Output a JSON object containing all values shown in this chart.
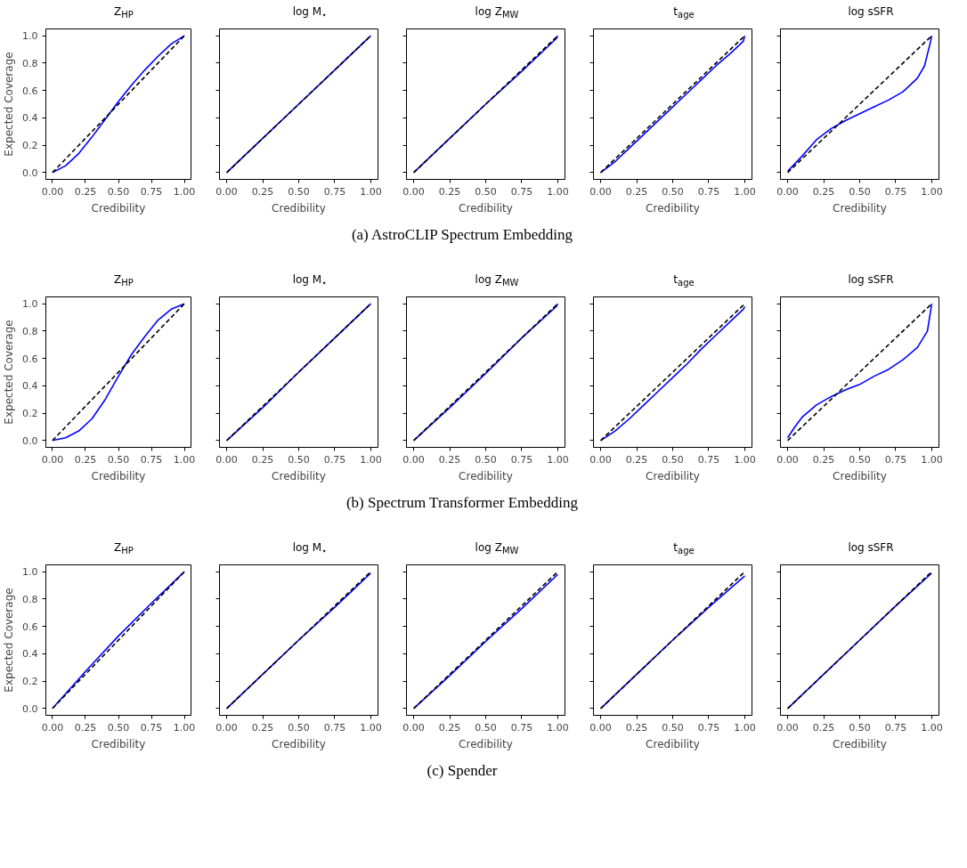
{
  "chart_data": [
    {
      "type": "line",
      "title": "Z$_{HP}$",
      "xlabel": "Credibility",
      "ylabel": "Expected Coverage",
      "xlim": [
        -0.05,
        1.05
      ],
      "ylim": [
        -0.05,
        1.05
      ],
      "xticks": [
        {
          "value": 0,
          "label": "0.00"
        },
        {
          "value": 0.25,
          "label": "0.25"
        },
        {
          "value": 0.5,
          "label": "0.50"
        },
        {
          "value": 0.75,
          "label": "0.75"
        },
        {
          "value": 1,
          "label": "1.00"
        }
      ],
      "yticks": [
        {
          "value": 0,
          "label": "0.0"
        },
        {
          "value": 0.2,
          "label": "0.2"
        },
        {
          "value": 0.4,
          "label": "0.4"
        },
        {
          "value": 0.6,
          "label": "0.6"
        },
        {
          "value": 0.8,
          "label": "0.8"
        },
        {
          "value": 1,
          "label": "1.0"
        }
      ],
      "grid": false,
      "series": [
        {
          "color": "#0000ff",
          "line_style": "solid",
          "x": [
            0,
            0.1,
            0.2,
            0.3,
            0.4,
            0.5,
            0.6,
            0.7,
            0.8,
            0.9,
            1
          ],
          "values": [
            0,
            0.05,
            0.14,
            0.26,
            0.39,
            0.52,
            0.64,
            0.75,
            0.85,
            0.94,
            1
          ]
        },
        {
          "color": "#000000",
          "line_style": "dashed",
          "x": [
            0,
            1
          ],
          "values": [
            0,
            1
          ]
        }
      ]
    },
    {
      "type": "line",
      "title": "log M$_{⋆}$",
      "xlabel": "Credibility",
      "xlim": [
        -0.05,
        1.05
      ],
      "ylim": [
        -0.05,
        1.05
      ],
      "xticks": [
        {
          "value": 0,
          "label": "0.00"
        },
        {
          "value": 0.25,
          "label": "0.25"
        },
        {
          "value": 0.5,
          "label": "0.50"
        },
        {
          "value": 0.75,
          "label": "0.75"
        },
        {
          "value": 1,
          "label": "1.00"
        }
      ],
      "yticks": [
        0,
        0.2,
        0.4,
        0.6,
        0.8,
        1
      ],
      "tick_labels": "x",
      "grid": false,
      "series": [
        {
          "color": "#0000ff",
          "line_style": "solid",
          "x": [
            0,
            0.25,
            0.5,
            0.75,
            1
          ],
          "values": [
            0,
            0.25,
            0.5,
            0.75,
            1
          ]
        },
        {
          "color": "#000000",
          "line_style": "dashed",
          "x": [
            0,
            1
          ],
          "values": [
            0,
            1
          ]
        }
      ]
    },
    {
      "type": "line",
      "title": "log Z$_{MW}$",
      "xlabel": "Credibility",
      "xlim": [
        -0.05,
        1.05
      ],
      "ylim": [
        -0.05,
        1.05
      ],
      "xticks": [
        {
          "value": 0,
          "label": "0.00"
        },
        {
          "value": 0.25,
          "label": "0.25"
        },
        {
          "value": 0.5,
          "label": "0.50"
        },
        {
          "value": 0.75,
          "label": "0.75"
        },
        {
          "value": 1,
          "label": "1.00"
        }
      ],
      "yticks": [
        0,
        0.2,
        0.4,
        0.6,
        0.8,
        1
      ],
      "tick_labels": "x",
      "grid": false,
      "annotations": [
        "(a) AstroCLIP Spectrum Embedding"
      ],
      "series": [
        {
          "color": "#0000ff",
          "line_style": "solid",
          "x": [
            0,
            0.25,
            0.5,
            0.75,
            0.99,
            1
          ],
          "values": [
            0,
            0.25,
            0.5,
            0.74,
            0.98,
            1
          ]
        },
        {
          "color": "#000000",
          "line_style": "dashed",
          "x": [
            0,
            1
          ],
          "values": [
            0,
            1
          ]
        }
      ]
    },
    {
      "type": "line",
      "title": "t$_{age}$",
      "xlabel": "Credibility",
      "xlim": [
        -0.05,
        1.05
      ],
      "ylim": [
        -0.05,
        1.05
      ],
      "xticks": [
        {
          "value": 0,
          "label": "0.00"
        },
        {
          "value": 0.25,
          "label": "0.25"
        },
        {
          "value": 0.5,
          "label": "0.50"
        },
        {
          "value": 0.75,
          "label": "0.75"
        },
        {
          "value": 1,
          "label": "1.00"
        }
      ],
      "yticks": [
        0,
        0.2,
        0.4,
        0.6,
        0.8,
        1
      ],
      "tick_labels": "x",
      "grid": false,
      "series": [
        {
          "color": "#0000ff",
          "line_style": "solid",
          "x": [
            0,
            0.1,
            0.2,
            0.3,
            0.4,
            0.5,
            0.6,
            0.7,
            0.8,
            0.9,
            0.99,
            1
          ],
          "values": [
            0,
            0.08,
            0.18,
            0.28,
            0.38,
            0.48,
            0.58,
            0.68,
            0.78,
            0.87,
            0.96,
            1
          ]
        },
        {
          "color": "#000000",
          "line_style": "dashed",
          "x": [
            0,
            1
          ],
          "values": [
            0,
            1
          ]
        }
      ]
    },
    {
      "type": "line",
      "title": "log sSFR",
      "xlabel": "Credibility",
      "xlim": [
        -0.05,
        1.05
      ],
      "ylim": [
        -0.05,
        1.05
      ],
      "xticks": [
        {
          "value": 0,
          "label": "0.00"
        },
        {
          "value": 0.25,
          "label": "0.25"
        },
        {
          "value": 0.5,
          "label": "0.50"
        },
        {
          "value": 0.75,
          "label": "0.75"
        },
        {
          "value": 1,
          "label": "1.00"
        }
      ],
      "yticks": [
        0,
        0.2,
        0.4,
        0.6,
        0.8,
        1
      ],
      "tick_labels": "x",
      "grid": false,
      "series": [
        {
          "color": "#0000ff",
          "line_style": "solid",
          "x": [
            0,
            0.1,
            0.2,
            0.3,
            0.4,
            0.5,
            0.6,
            0.7,
            0.8,
            0.9,
            0.95,
            0.99,
            1
          ],
          "values": [
            0.01,
            0.12,
            0.24,
            0.32,
            0.38,
            0.43,
            0.48,
            0.53,
            0.59,
            0.69,
            0.78,
            0.95,
            1
          ]
        },
        {
          "color": "#000000",
          "line_style": "dashed",
          "x": [
            0,
            1
          ],
          "values": [
            0,
            1
          ]
        }
      ]
    },
    {
      "type": "line",
      "title": "Z$_{HP}$",
      "xlabel": "Credibility",
      "ylabel": "Expected Coverage",
      "xlim": [
        -0.05,
        1.05
      ],
      "ylim": [
        -0.05,
        1.05
      ],
      "xticks": [
        {
          "value": 0,
          "label": "0.00"
        },
        {
          "value": 0.25,
          "label": "0.25"
        },
        {
          "value": 0.5,
          "label": "0.50"
        },
        {
          "value": 0.75,
          "label": "0.75"
        },
        {
          "value": 1,
          "label": "1.00"
        }
      ],
      "yticks": [
        {
          "value": 0,
          "label": "0.0"
        },
        {
          "value": 0.2,
          "label": "0.2"
        },
        {
          "value": 0.4,
          "label": "0.4"
        },
        {
          "value": 0.6,
          "label": "0.6"
        },
        {
          "value": 0.8,
          "label": "0.8"
        },
        {
          "value": 1,
          "label": "1.0"
        }
      ],
      "grid": false,
      "series": [
        {
          "color": "#0000ff",
          "line_style": "solid",
          "x": [
            0,
            0.1,
            0.2,
            0.3,
            0.4,
            0.5,
            0.6,
            0.7,
            0.8,
            0.9,
            1
          ],
          "values": [
            0,
            0.02,
            0.07,
            0.16,
            0.3,
            0.47,
            0.63,
            0.76,
            0.88,
            0.96,
            1
          ]
        },
        {
          "color": "#000000",
          "line_style": "dashed",
          "x": [
            0,
            1
          ],
          "values": [
            0,
            1
          ]
        }
      ]
    },
    {
      "type": "line",
      "title": "log M$_{⋆}$",
      "xlabel": "Credibility",
      "xlim": [
        -0.05,
        1.05
      ],
      "ylim": [
        -0.05,
        1.05
      ],
      "xticks": [
        {
          "value": 0,
          "label": "0.00"
        },
        {
          "value": 0.25,
          "label": "0.25"
        },
        {
          "value": 0.5,
          "label": "0.50"
        },
        {
          "value": 0.75,
          "label": "0.75"
        },
        {
          "value": 1,
          "label": "1.00"
        }
      ],
      "yticks": [
        0,
        0.2,
        0.4,
        0.6,
        0.8,
        1
      ],
      "tick_labels": "x",
      "grid": false,
      "series": [
        {
          "color": "#0000ff",
          "line_style": "solid",
          "x": [
            0,
            0.25,
            0.5,
            0.75,
            1
          ],
          "values": [
            0,
            0.24,
            0.5,
            0.75,
            1
          ]
        },
        {
          "color": "#000000",
          "line_style": "dashed",
          "x": [
            0,
            1
          ],
          "values": [
            0,
            1
          ]
        }
      ]
    },
    {
      "type": "line",
      "title": "log Z$_{MW}$",
      "xlabel": "Credibility",
      "xlim": [
        -0.05,
        1.05
      ],
      "ylim": [
        -0.05,
        1.05
      ],
      "xticks": [
        {
          "value": 0,
          "label": "0.00"
        },
        {
          "value": 0.25,
          "label": "0.25"
        },
        {
          "value": 0.5,
          "label": "0.50"
        },
        {
          "value": 0.75,
          "label": "0.75"
        },
        {
          "value": 1,
          "label": "1.00"
        }
      ],
      "yticks": [
        0,
        0.2,
        0.4,
        0.6,
        0.8,
        1
      ],
      "tick_labels": "x",
      "grid": false,
      "annotations": [
        "(b) Spectrum Transformer Embedding"
      ],
      "series": [
        {
          "color": "#0000ff",
          "line_style": "solid",
          "x": [
            0,
            0.25,
            0.5,
            0.75,
            0.99,
            1
          ],
          "values": [
            0,
            0.24,
            0.49,
            0.75,
            0.98,
            1
          ]
        },
        {
          "color": "#000000",
          "line_style": "dashed",
          "x": [
            0,
            1
          ],
          "values": [
            0,
            1
          ]
        }
      ]
    },
    {
      "type": "line",
      "title": "t$_{age}$",
      "xlabel": "Credibility",
      "xlim": [
        -0.05,
        1.05
      ],
      "ylim": [
        -0.05,
        1.05
      ],
      "xticks": [
        {
          "value": 0,
          "label": "0.00"
        },
        {
          "value": 0.25,
          "label": "0.25"
        },
        {
          "value": 0.5,
          "label": "0.50"
        },
        {
          "value": 0.75,
          "label": "0.75"
        },
        {
          "value": 1,
          "label": "1.00"
        }
      ],
      "yticks": [
        0,
        0.2,
        0.4,
        0.6,
        0.8,
        1
      ],
      "tick_labels": "x",
      "grid": false,
      "series": [
        {
          "color": "#0000ff",
          "line_style": "solid",
          "x": [
            0,
            0.1,
            0.2,
            0.3,
            0.4,
            0.5,
            0.6,
            0.7,
            0.8,
            0.9,
            0.99,
            1
          ],
          "values": [
            0,
            0.07,
            0.16,
            0.26,
            0.36,
            0.46,
            0.56,
            0.67,
            0.77,
            0.87,
            0.96,
            0.98
          ]
        },
        {
          "color": "#000000",
          "line_style": "dashed",
          "x": [
            0,
            1
          ],
          "values": [
            0,
            1
          ]
        }
      ]
    },
    {
      "type": "line",
      "title": "log sSFR",
      "xlabel": "Credibility",
      "xlim": [
        -0.05,
        1.05
      ],
      "ylim": [
        -0.05,
        1.05
      ],
      "xticks": [
        {
          "value": 0,
          "label": "0.00"
        },
        {
          "value": 0.25,
          "label": "0.25"
        },
        {
          "value": 0.5,
          "label": "0.50"
        },
        {
          "value": 0.75,
          "label": "0.75"
        },
        {
          "value": 1,
          "label": "1.00"
        }
      ],
      "yticks": [
        0,
        0.2,
        0.4,
        0.6,
        0.8,
        1
      ],
      "tick_labels": "x",
      "grid": false,
      "series": [
        {
          "color": "#0000ff",
          "line_style": "solid",
          "x": [
            0,
            0.05,
            0.1,
            0.2,
            0.3,
            0.4,
            0.5,
            0.6,
            0.7,
            0.8,
            0.9,
            0.97,
            1
          ],
          "values": [
            0.02,
            0.1,
            0.17,
            0.26,
            0.32,
            0.37,
            0.41,
            0.47,
            0.52,
            0.59,
            0.68,
            0.8,
            1
          ]
        },
        {
          "color": "#000000",
          "line_style": "dashed",
          "x": [
            0,
            1
          ],
          "values": [
            0,
            1
          ]
        }
      ]
    },
    {
      "type": "line",
      "title": "Z$_{HP}$",
      "xlabel": "Credibility",
      "ylabel": "Expected Coverage",
      "xlim": [
        -0.05,
        1.05
      ],
      "ylim": [
        -0.05,
        1.05
      ],
      "xticks": [
        {
          "value": 0,
          "label": "0.00"
        },
        {
          "value": 0.25,
          "label": "0.25"
        },
        {
          "value": 0.5,
          "label": "0.50"
        },
        {
          "value": 0.75,
          "label": "0.75"
        },
        {
          "value": 1,
          "label": "1.00"
        }
      ],
      "yticks": [
        {
          "value": 0,
          "label": "0.0"
        },
        {
          "value": 0.2,
          "label": "0.2"
        },
        {
          "value": 0.4,
          "label": "0.4"
        },
        {
          "value": 0.6,
          "label": "0.6"
        },
        {
          "value": 0.8,
          "label": "0.8"
        },
        {
          "value": 1,
          "label": "1.0"
        }
      ],
      "grid": false,
      "series": [
        {
          "color": "#0000ff",
          "line_style": "solid",
          "x": [
            0,
            0.25,
            0.5,
            0.75,
            1
          ],
          "values": [
            0,
            0.27,
            0.53,
            0.77,
            1
          ]
        },
        {
          "color": "#000000",
          "line_style": "dashed",
          "x": [
            0,
            1
          ],
          "values": [
            0,
            1
          ]
        }
      ]
    },
    {
      "type": "line",
      "title": "log M$_{⋆}$",
      "xlabel": "Credibility",
      "xlim": [
        -0.05,
        1.05
      ],
      "ylim": [
        -0.05,
        1.05
      ],
      "xticks": [
        {
          "value": 0,
          "label": "0.00"
        },
        {
          "value": 0.25,
          "label": "0.25"
        },
        {
          "value": 0.5,
          "label": "0.50"
        },
        {
          "value": 0.75,
          "label": "0.75"
        },
        {
          "value": 1,
          "label": "1.00"
        }
      ],
      "yticks": [
        0,
        0.2,
        0.4,
        0.6,
        0.8,
        1
      ],
      "tick_labels": "x",
      "grid": false,
      "series": [
        {
          "color": "#0000ff",
          "line_style": "solid",
          "x": [
            0,
            0.25,
            0.5,
            0.75,
            1
          ],
          "values": [
            0,
            0.25,
            0.5,
            0.74,
            0.99
          ]
        },
        {
          "color": "#000000",
          "line_style": "dashed",
          "x": [
            0,
            1
          ],
          "values": [
            0,
            1
          ]
        }
      ]
    },
    {
      "type": "line",
      "title": "log Z$_{MW}$",
      "xlabel": "Credibility",
      "xlim": [
        -0.05,
        1.05
      ],
      "ylim": [
        -0.05,
        1.05
      ],
      "xticks": [
        {
          "value": 0,
          "label": "0.00"
        },
        {
          "value": 0.25,
          "label": "0.25"
        },
        {
          "value": 0.5,
          "label": "0.50"
        },
        {
          "value": 0.75,
          "label": "0.75"
        },
        {
          "value": 1,
          "label": "1.00"
        }
      ],
      "yticks": [
        0,
        0.2,
        0.4,
        0.6,
        0.8,
        1
      ],
      "tick_labels": "x",
      "grid": false,
      "annotations": [
        "(c) Spender"
      ],
      "series": [
        {
          "color": "#0000ff",
          "line_style": "solid",
          "x": [
            0,
            0.25,
            0.5,
            0.75,
            1
          ],
          "values": [
            0,
            0.24,
            0.49,
            0.73,
            0.98
          ]
        },
        {
          "color": "#000000",
          "line_style": "dashed",
          "x": [
            0,
            1
          ],
          "values": [
            0,
            1
          ]
        }
      ]
    },
    {
      "type": "line",
      "title": "t$_{age}$",
      "xlabel": "Credibility",
      "xlim": [
        -0.05,
        1.05
      ],
      "ylim": [
        -0.05,
        1.05
      ],
      "xticks": [
        {
          "value": 0,
          "label": "0.00"
        },
        {
          "value": 0.25,
          "label": "0.25"
        },
        {
          "value": 0.5,
          "label": "0.50"
        },
        {
          "value": 0.75,
          "label": "0.75"
        },
        {
          "value": 1,
          "label": "1.00"
        }
      ],
      "yticks": [
        0,
        0.2,
        0.4,
        0.6,
        0.8,
        1
      ],
      "tick_labels": "x",
      "grid": false,
      "series": [
        {
          "color": "#0000ff",
          "line_style": "solid",
          "x": [
            0,
            0.25,
            0.5,
            0.75,
            0.99,
            1
          ],
          "values": [
            0,
            0.25,
            0.5,
            0.74,
            0.96,
            0.97
          ]
        },
        {
          "color": "#000000",
          "line_style": "dashed",
          "x": [
            0,
            1
          ],
          "values": [
            0,
            1
          ]
        }
      ]
    },
    {
      "type": "line",
      "title": "log sSFR",
      "xlabel": "Credibility",
      "xlim": [
        -0.05,
        1.05
      ],
      "ylim": [
        -0.05,
        1.05
      ],
      "xticks": [
        {
          "value": 0,
          "label": "0.00"
        },
        {
          "value": 0.25,
          "label": "0.25"
        },
        {
          "value": 0.5,
          "label": "0.50"
        },
        {
          "value": 0.75,
          "label": "0.75"
        },
        {
          "value": 1,
          "label": "1.00"
        }
      ],
      "yticks": [
        0,
        0.2,
        0.4,
        0.6,
        0.8,
        1
      ],
      "tick_labels": "x",
      "grid": false,
      "series": [
        {
          "color": "#0000ff",
          "line_style": "solid",
          "x": [
            0,
            0.25,
            0.5,
            0.75,
            1
          ],
          "values": [
            0,
            0.25,
            0.5,
            0.75,
            0.99
          ]
        },
        {
          "color": "#000000",
          "line_style": "dashed",
          "x": [
            0,
            1
          ],
          "values": [
            0,
            1
          ]
        }
      ]
    }
  ]
}
